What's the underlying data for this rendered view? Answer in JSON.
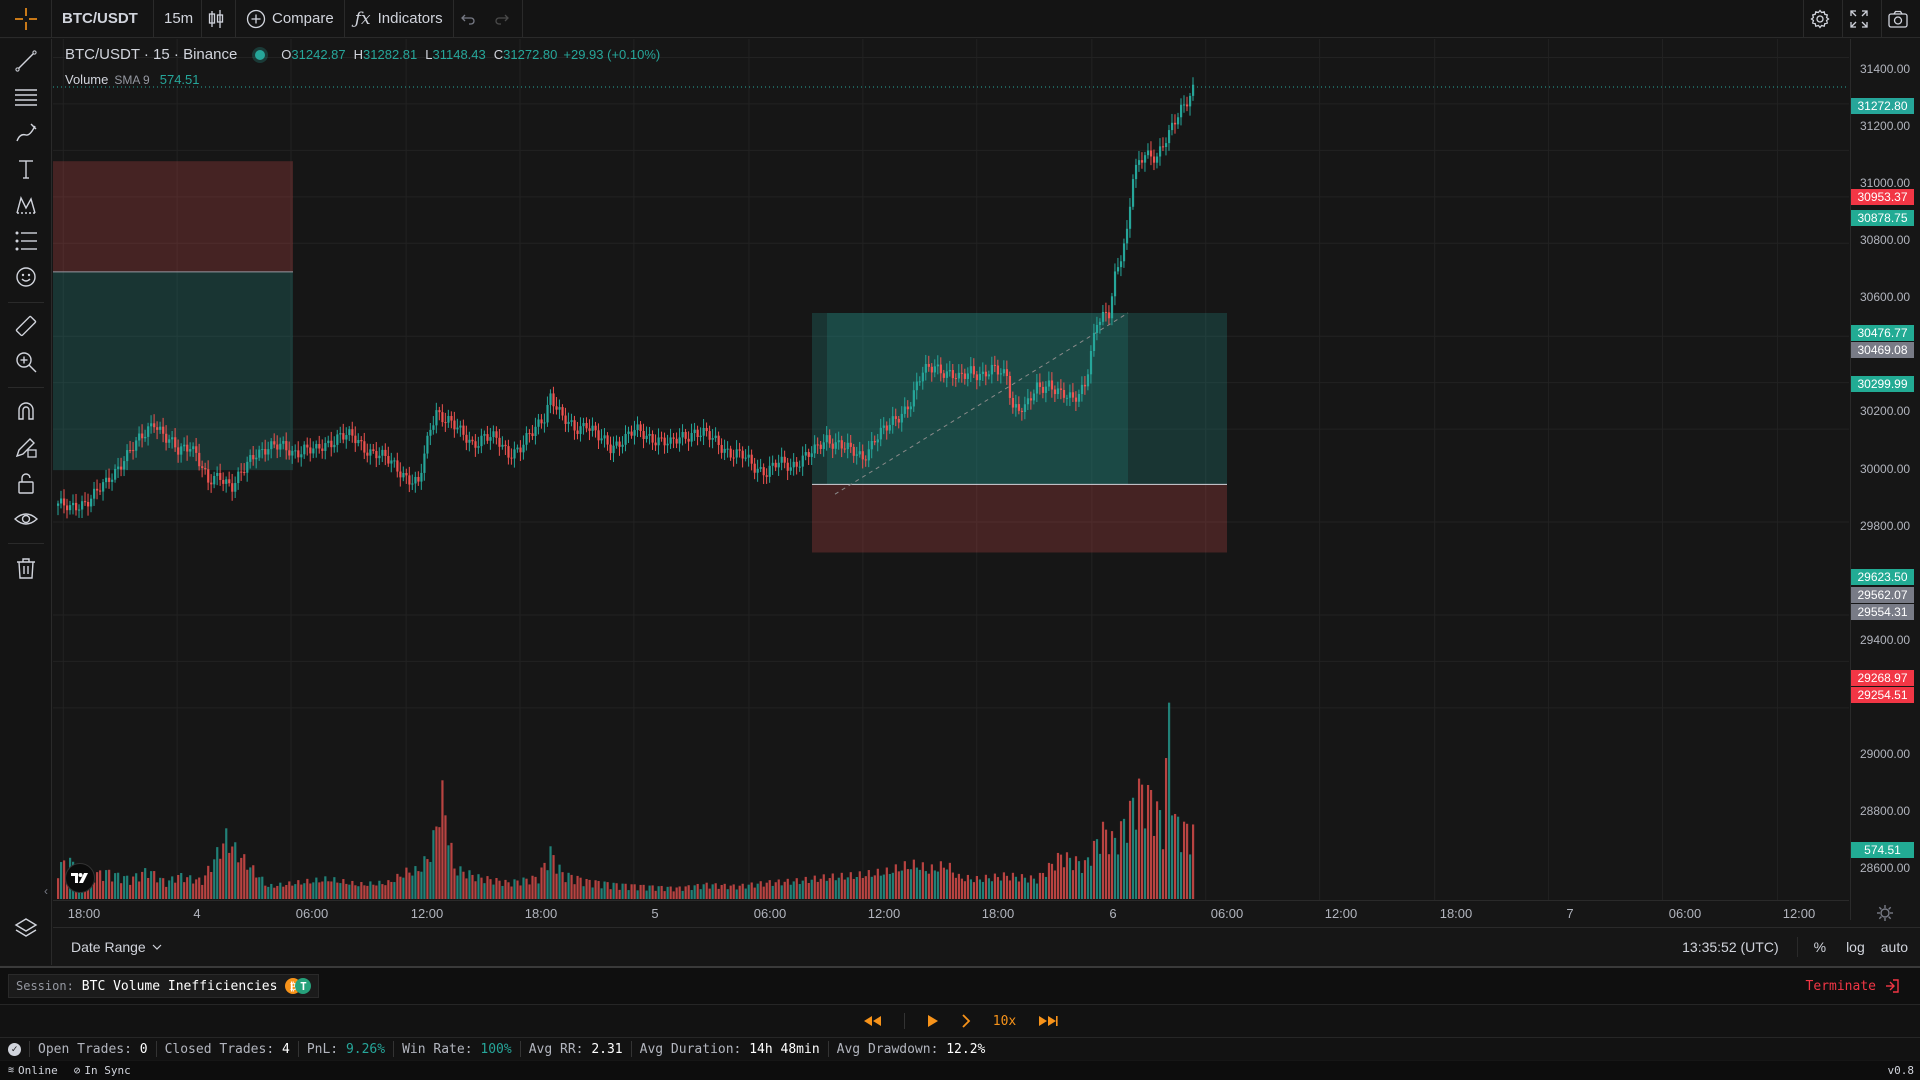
{
  "topbar": {
    "symbol": "BTC/USDT",
    "interval": "15m",
    "compare_label": "Compare",
    "indicators_label": "Indicators"
  },
  "legend": {
    "title": "BTC/USDT · 15 · Binance",
    "o_label": "O",
    "o_value": "31242.87",
    "h_label": "H",
    "h_value": "31282.81",
    "l_label": "L",
    "l_value": "31148.43",
    "c_label": "C",
    "c_value": "31272.80",
    "change": "+29.93 (+0.10%)",
    "volume_label": "Volume",
    "volume_sma": "SMA 9",
    "volume_value": "574.51"
  },
  "price_axis": {
    "ticks": [
      "31400.00",
      "31200.00",
      "31000.00",
      "30800.00",
      "30600.00",
      "30200.00",
      "30000.00",
      "29800.00",
      "29400.00",
      "29000.00",
      "28800.00",
      "28600.00"
    ],
    "tags": [
      {
        "text": "31272.80",
        "color": "#26a69a"
      },
      {
        "text": "30953.37",
        "color": "#f23645"
      },
      {
        "text": "30878.75",
        "color": "#22ab94"
      },
      {
        "text": "30476.77",
        "color": "#22ab94"
      },
      {
        "text": "30469.08",
        "color": "#787b86"
      },
      {
        "text": "30299.99",
        "color": "#22ab94"
      },
      {
        "text": "29623.50",
        "color": "#22ab94"
      },
      {
        "text": "29562.07",
        "color": "#787b86"
      },
      {
        "text": "29554.31",
        "color": "#787b86"
      },
      {
        "text": "29268.97",
        "color": "#f23645"
      },
      {
        "text": "29254.51",
        "color": "#f23645"
      },
      {
        "text": "574.51",
        "color": "#22ab94"
      }
    ]
  },
  "time_axis": {
    "ticks": [
      "18:00",
      "4",
      "06:00",
      "12:00",
      "18:00",
      "5",
      "06:00",
      "12:00",
      "18:00",
      "6",
      "06:00",
      "12:00",
      "18:00",
      "7",
      "06:00",
      "12:00"
    ]
  },
  "chart_data": {
    "type": "candlestick",
    "symbol": "BTC/USDT",
    "interval": "15",
    "exchange": "Binance",
    "ylim": [
      28500,
      31500
    ],
    "last_price": 31272.8,
    "keypoints_price": [
      [
        0,
        29480
      ],
      [
        4,
        29450
      ],
      [
        10,
        29500
      ],
      [
        16,
        29560
      ],
      [
        22,
        29680
      ],
      [
        28,
        29760
      ],
      [
        32,
        29840
      ],
      [
        36,
        29760
      ],
      [
        40,
        29700
      ],
      [
        44,
        29740
      ],
      [
        46,
        29700
      ],
      [
        50,
        29560
      ],
      [
        54,
        29600
      ],
      [
        58,
        29560
      ],
      [
        62,
        29620
      ],
      [
        66,
        29700
      ],
      [
        70,
        29730
      ],
      [
        74,
        29720
      ],
      [
        78,
        29700
      ],
      [
        82,
        29720
      ],
      [
        86,
        29700
      ],
      [
        90,
        29740
      ],
      [
        94,
        29780
      ],
      [
        98,
        29760
      ],
      [
        102,
        29720
      ],
      [
        106,
        29700
      ],
      [
        110,
        29660
      ],
      [
        114,
        29620
      ],
      [
        118,
        29580
      ],
      [
        120,
        29560
      ],
      [
        124,
        29800
      ],
      [
        126,
        29880
      ],
      [
        130,
        29840
      ],
      [
        134,
        29780
      ],
      [
        138,
        29740
      ],
      [
        142,
        29770
      ],
      [
        146,
        29750
      ],
      [
        150,
        29700
      ],
      [
        154,
        29720
      ],
      [
        158,
        29780
      ],
      [
        162,
        29860
      ],
      [
        164,
        29950
      ],
      [
        168,
        29840
      ],
      [
        172,
        29800
      ],
      [
        176,
        29830
      ],
      [
        180,
        29760
      ],
      [
        184,
        29720
      ],
      [
        188,
        29760
      ],
      [
        192,
        29790
      ],
      [
        196,
        29770
      ],
      [
        200,
        29760
      ],
      [
        204,
        29730
      ],
      [
        208,
        29770
      ],
      [
        212,
        29790
      ],
      [
        216,
        29770
      ],
      [
        220,
        29740
      ],
      [
        224,
        29700
      ],
      [
        228,
        29680
      ],
      [
        232,
        29640
      ],
      [
        236,
        29620
      ],
      [
        240,
        29650
      ],
      [
        244,
        29640
      ],
      [
        248,
        29680
      ],
      [
        252,
        29700
      ],
      [
        256,
        29760
      ],
      [
        260,
        29740
      ],
      [
        264,
        29700
      ],
      [
        268,
        29680
      ],
      [
        272,
        29760
      ],
      [
        276,
        29800
      ],
      [
        280,
        29860
      ],
      [
        284,
        29920
      ],
      [
        288,
        30040
      ],
      [
        292,
        30080
      ],
      [
        296,
        30040
      ],
      [
        300,
        30010
      ],
      [
        304,
        30060
      ],
      [
        308,
        30030
      ],
      [
        312,
        30050
      ],
      [
        316,
        30040
      ],
      [
        318,
        29900
      ],
      [
        322,
        29880
      ],
      [
        326,
        29980
      ],
      [
        330,
        30000
      ],
      [
        334,
        29940
      ],
      [
        338,
        29930
      ],
      [
        342,
        30000
      ],
      [
        346,
        30250
      ],
      [
        350,
        30300
      ],
      [
        352,
        30470
      ],
      [
        356,
        30640
      ],
      [
        358,
        30880
      ],
      [
        362,
        30990
      ],
      [
        366,
        30980
      ],
      [
        370,
        31060
      ],
      [
        374,
        31180
      ],
      [
        378,
        31270
      ]
    ],
    "volume_sma9": 574.51,
    "volume_keypoints": [
      [
        0,
        180
      ],
      [
        4,
        210
      ],
      [
        8,
        120
      ],
      [
        16,
        150
      ],
      [
        24,
        110
      ],
      [
        30,
        160
      ],
      [
        36,
        90
      ],
      [
        40,
        130
      ],
      [
        48,
        100
      ],
      [
        56,
        340
      ],
      [
        60,
        250
      ],
      [
        64,
        180
      ],
      [
        70,
        70
      ],
      [
        80,
        90
      ],
      [
        90,
        110
      ],
      [
        100,
        80
      ],
      [
        110,
        90
      ],
      [
        116,
        150
      ],
      [
        120,
        160
      ],
      [
        124,
        250
      ],
      [
        128,
        570
      ],
      [
        132,
        170
      ],
      [
        140,
        120
      ],
      [
        150,
        90
      ],
      [
        160,
        120
      ],
      [
        164,
        260
      ],
      [
        168,
        140
      ],
      [
        176,
        100
      ],
      [
        186,
        80
      ],
      [
        196,
        70
      ],
      [
        206,
        60
      ],
      [
        216,
        80
      ],
      [
        226,
        70
      ],
      [
        236,
        90
      ],
      [
        246,
        100
      ],
      [
        256,
        120
      ],
      [
        266,
        130
      ],
      [
        276,
        150
      ],
      [
        282,
        180
      ],
      [
        286,
        190
      ],
      [
        290,
        160
      ],
      [
        296,
        190
      ],
      [
        300,
        120
      ],
      [
        306,
        110
      ],
      [
        316,
        130
      ],
      [
        326,
        110
      ],
      [
        334,
        240
      ],
      [
        342,
        190
      ],
      [
        348,
        380
      ],
      [
        352,
        320
      ],
      [
        356,
        450
      ],
      [
        360,
        600
      ],
      [
        364,
        560
      ],
      [
        368,
        420
      ],
      [
        370,
        1000
      ],
      [
        372,
        430
      ],
      [
        376,
        380
      ]
    ],
    "positions": [
      {
        "type": "short",
        "profit_top": 30476.77,
        "entry": 30476.77,
        "stop": 30953.37,
        "target": 29623.5
      },
      {
        "type": "long",
        "entry": 29562.07,
        "target": 30299.99,
        "stop": 29268.97
      }
    ]
  },
  "bottombar": {
    "date_range_label": "Date Range",
    "clock": "13:35:52 (UTC)",
    "percent_label": "%",
    "log_label": "log",
    "auto_label": "auto"
  },
  "session": {
    "label": "Session:",
    "name": "BTC Volume Inefficiencies",
    "terminate_label": "Terminate"
  },
  "playback": {
    "speed": "10x"
  },
  "stats": {
    "open_trades_label": "Open Trades:",
    "open_trades": "0",
    "closed_trades_label": "Closed Trades:",
    "closed_trades": "4",
    "pnl_label": "PnL:",
    "pnl": "9.26%",
    "win_rate_label": "Win Rate:",
    "win_rate": "100%",
    "avg_rr_label": "Avg RR:",
    "avg_rr": "2.31",
    "avg_duration_label": "Avg Duration:",
    "avg_duration": "14h 48min",
    "avg_drawdown_label": "Avg Drawdown:",
    "avg_drawdown": "12.2%"
  },
  "statusbar": {
    "online_label": "Online",
    "sync_label": "In Sync",
    "version": "v0.8"
  },
  "colors": {
    "up": "#26a69a",
    "down": "#ef5350",
    "accent_orange": "#f7931a",
    "terminate": "#f23645"
  }
}
